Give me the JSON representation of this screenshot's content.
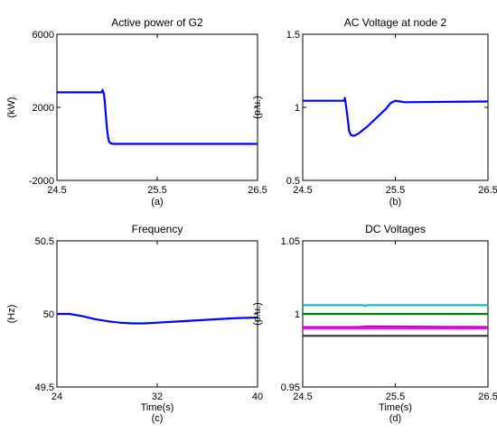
{
  "chart_data": [
    {
      "type": "line",
      "title": "Active power of G2",
      "xlabel": "",
      "ylabel": "(kW)",
      "caption": "(a)",
      "xlim": [
        24.5,
        26.5
      ],
      "ylim": [
        -2000,
        6000
      ],
      "xticks": [
        "24.5",
        "25.5",
        "26.5"
      ],
      "yticks": [
        "-2000",
        "2000",
        "6000"
      ],
      "series": [
        {
          "color": "#0000ff",
          "x": [
            24.5,
            24.95,
            24.955,
            24.97,
            24.98,
            24.99,
            25.0,
            25.01,
            25.02,
            25.04,
            25.06,
            25.1,
            26.5
          ],
          "y": [
            2820,
            2820,
            2960,
            2700,
            2100,
            1400,
            800,
            350,
            120,
            20,
            0,
            0,
            0
          ]
        }
      ]
    },
    {
      "type": "line",
      "title": "AC Voltage at node 2",
      "xlabel": "",
      "ylabel": "(p.u.)",
      "caption": "(b)",
      "xlim": [
        24.5,
        26.5
      ],
      "ylim": [
        0.5,
        1.5
      ],
      "xticks": [
        "24.5",
        "25.5",
        "26.5"
      ],
      "yticks": [
        "0.5",
        "1",
        "1.5"
      ],
      "series": [
        {
          "color": "#0000ff",
          "x": [
            24.5,
            24.95,
            24.955,
            24.97,
            24.99,
            25.0,
            25.02,
            25.05,
            25.1,
            25.2,
            25.3,
            25.4,
            25.45,
            25.5,
            25.55,
            25.6,
            26.5
          ],
          "y": [
            1.045,
            1.045,
            1.065,
            1.0,
            0.9,
            0.84,
            0.81,
            0.805,
            0.82,
            0.87,
            0.93,
            0.99,
            1.03,
            1.045,
            1.04,
            1.035,
            1.04
          ]
        }
      ]
    },
    {
      "type": "line",
      "title": "Frequency",
      "xlabel": "Time(s)",
      "ylabel": "(Hz)",
      "caption": "(c)",
      "xlim": [
        24,
        40
      ],
      "ylim": [
        49.5,
        50.5
      ],
      "xticks": [
        "24",
        "32",
        "40"
      ],
      "yticks": [
        "49.5",
        "50",
        "50.5"
      ],
      "series": [
        {
          "color": "#0000ff",
          "x": [
            24,
            25,
            26,
            27,
            28,
            29,
            30,
            31,
            32,
            34,
            36,
            38,
            40
          ],
          "y": [
            50.0,
            50.0,
            49.985,
            49.965,
            49.95,
            49.94,
            49.935,
            49.935,
            49.94,
            49.95,
            49.96,
            49.97,
            49.975
          ]
        }
      ]
    },
    {
      "type": "line",
      "title": "DC Voltages",
      "xlabel": "Time(s)",
      "ylabel": "(p.u.)",
      "caption": "(d)",
      "xlim": [
        24.5,
        26.5
      ],
      "ylim": [
        0.95,
        1.05
      ],
      "xticks": [
        "24.5",
        "25.5",
        "26.5"
      ],
      "yticks": [
        "0.95",
        "1",
        "1.05"
      ],
      "series": [
        {
          "color": "#00bfbf",
          "x": [
            24.5,
            25.15,
            25.17,
            25.2,
            26.5
          ],
          "y": [
            1.006,
            1.006,
            1.0055,
            1.006,
            1.006
          ]
        },
        {
          "color": "#007f00",
          "x": [
            24.5,
            26.5
          ],
          "y": [
            1.0,
            1.0
          ]
        },
        {
          "color": "#bf00bf",
          "x": [
            24.5,
            25.1,
            25.2,
            26.5
          ],
          "y": [
            0.991,
            0.991,
            0.9915,
            0.991
          ]
        },
        {
          "color": "#ff00ff",
          "x": [
            24.5,
            26.5
          ],
          "y": [
            0.99,
            0.99
          ]
        },
        {
          "color": "#333333",
          "x": [
            24.5,
            26.5
          ],
          "y": [
            0.985,
            0.985
          ]
        }
      ]
    }
  ]
}
